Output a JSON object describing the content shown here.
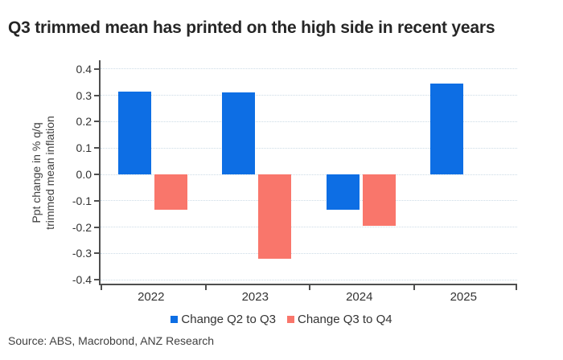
{
  "title": "Q3 trimmed mean has printed on the high side in recent years",
  "source": "Source: ABS, Macrobond, ANZ Research",
  "colors": {
    "blue": "#0d6ee4",
    "red": "#f9766b",
    "axis": "#4f4f4f",
    "grid": "#ccdbe6",
    "title_text": "#262626",
    "label_text": "#333333",
    "ylabel_text": "#404040"
  },
  "chart_data": {
    "type": "bar",
    "categories": [
      "2022",
      "2023",
      "2024",
      "2025"
    ],
    "series": [
      {
        "name": "Change Q2 to Q3",
        "color_key": "blue",
        "values": [
          0.315,
          0.31,
          -0.135,
          0.345
        ]
      },
      {
        "name": "Change Q3 to Q4",
        "color_key": "red",
        "values": [
          -0.135,
          -0.32,
          -0.195,
          null
        ]
      }
    ],
    "title": "Q3 trimmed mean has printed on the high side in recent years",
    "ylabel_lines": [
      "Ppt change in % q/q",
      "trimmed mean inflation"
    ],
    "xlabel": "",
    "yticks": [
      0.4,
      0.3,
      0.2,
      0.1,
      0.0,
      -0.1,
      -0.2,
      -0.3,
      -0.4
    ],
    "ylim": [
      -0.42,
      0.435
    ],
    "grid": "horizontal-dotted",
    "legend_position": "bottom"
  }
}
